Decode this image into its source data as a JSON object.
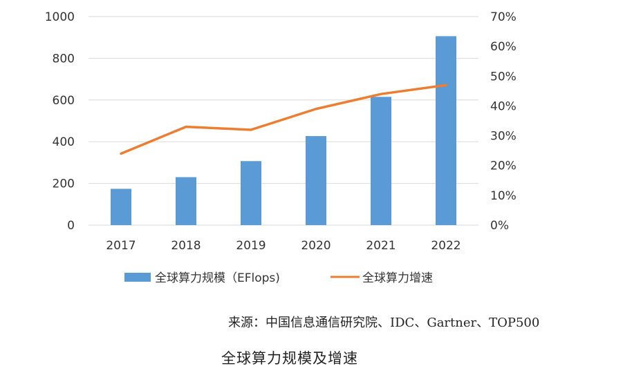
{
  "chart_data": {
    "type": "bar",
    "categories": [
      "2017",
      "2018",
      "2019",
      "2020",
      "2021",
      "2022"
    ],
    "series": [
      {
        "name": "全球算力规模（EFlops)",
        "type": "bar",
        "axis": "left",
        "color": "#5b9bd5",
        "values": [
          174,
          230,
          307,
          427,
          615,
          906
        ]
      },
      {
        "name": "全球算力增速",
        "type": "line",
        "axis": "right",
        "color": "#ed7d31",
        "values": [
          0.24,
          0.33,
          0.32,
          0.39,
          0.44,
          0.47
        ]
      }
    ],
    "y_left": {
      "min": 0,
      "max": 1000,
      "ticks": [
        "0",
        "200",
        "400",
        "600",
        "800",
        "1000"
      ]
    },
    "y_right": {
      "min": 0,
      "max": 0.7,
      "ticks": [
        "0%",
        "10%",
        "20%",
        "30%",
        "40%",
        "50%",
        "60%",
        "70%"
      ]
    },
    "grid": true,
    "legend_position": "bottom"
  },
  "source_text": "来源：中国信息通信研究院、IDC、Gartner、TOP500",
  "caption_text": "全球算力规模及增速"
}
